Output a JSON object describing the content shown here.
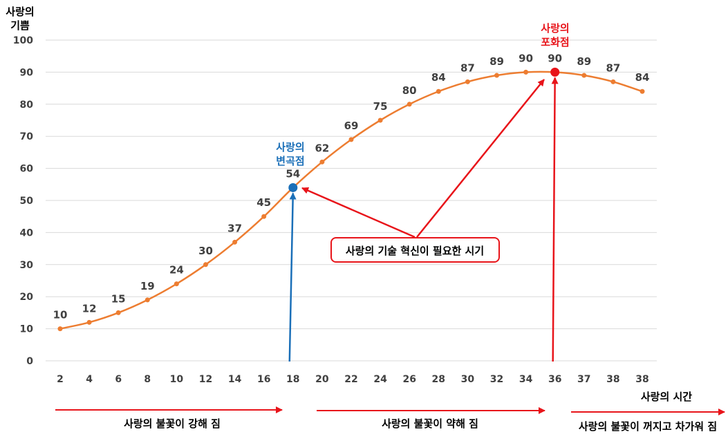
{
  "chart_data": {
    "type": "line",
    "title": "",
    "ylabel_lines": [
      "사랑의",
      "기쁨"
    ],
    "xlabel": "사랑의 시간",
    "ylim": [
      0,
      100
    ],
    "yticks": [
      "0",
      "10",
      "20",
      "30",
      "40",
      "50",
      "60",
      "70",
      "80",
      "90",
      "100"
    ],
    "categories": [
      "2",
      "4",
      "6",
      "8",
      "10",
      "12",
      "14",
      "16",
      "18",
      "20",
      "22",
      "24",
      "26",
      "28",
      "30",
      "32",
      "34",
      "36",
      "37",
      "38",
      "38"
    ],
    "series": [
      {
        "name": "사랑의 기쁨",
        "color": "#ed7d31",
        "values": [
          10,
          12,
          15,
          19,
          24,
          30,
          37,
          45,
          54,
          62,
          69,
          75,
          80,
          84,
          87,
          89,
          90,
          90,
          89,
          87,
          84
        ],
        "label_indices": [
          0,
          1,
          2,
          3,
          4,
          5,
          6,
          7,
          8,
          9,
          10,
          11,
          12,
          13,
          14,
          15,
          16,
          17,
          18,
          19,
          20
        ]
      }
    ],
    "highlights": [
      {
        "index": 8,
        "color": "#1a6fb8",
        "label_lines": [
          "사랑의",
          "변곡점"
        ]
      },
      {
        "index": 17,
        "color": "#e8141a",
        "label_lines": [
          "사랑의",
          "포화점"
        ]
      }
    ],
    "callout": {
      "text": "사랑의 기술 혁신이 필요한 시기",
      "border_color": "#e8141a"
    },
    "phases": [
      {
        "text": "사랑의 불꽃이 강해 짐",
        "color": "#e8141a"
      },
      {
        "text": "사랑의 불꽃이 약해 짐",
        "color": "#e8141a"
      },
      {
        "text": "사랑의 불꽃이 꺼지고 차가워 짐",
        "color": "#e8141a"
      }
    ],
    "grid": true,
    "grid_color": "#d9d9d9"
  }
}
